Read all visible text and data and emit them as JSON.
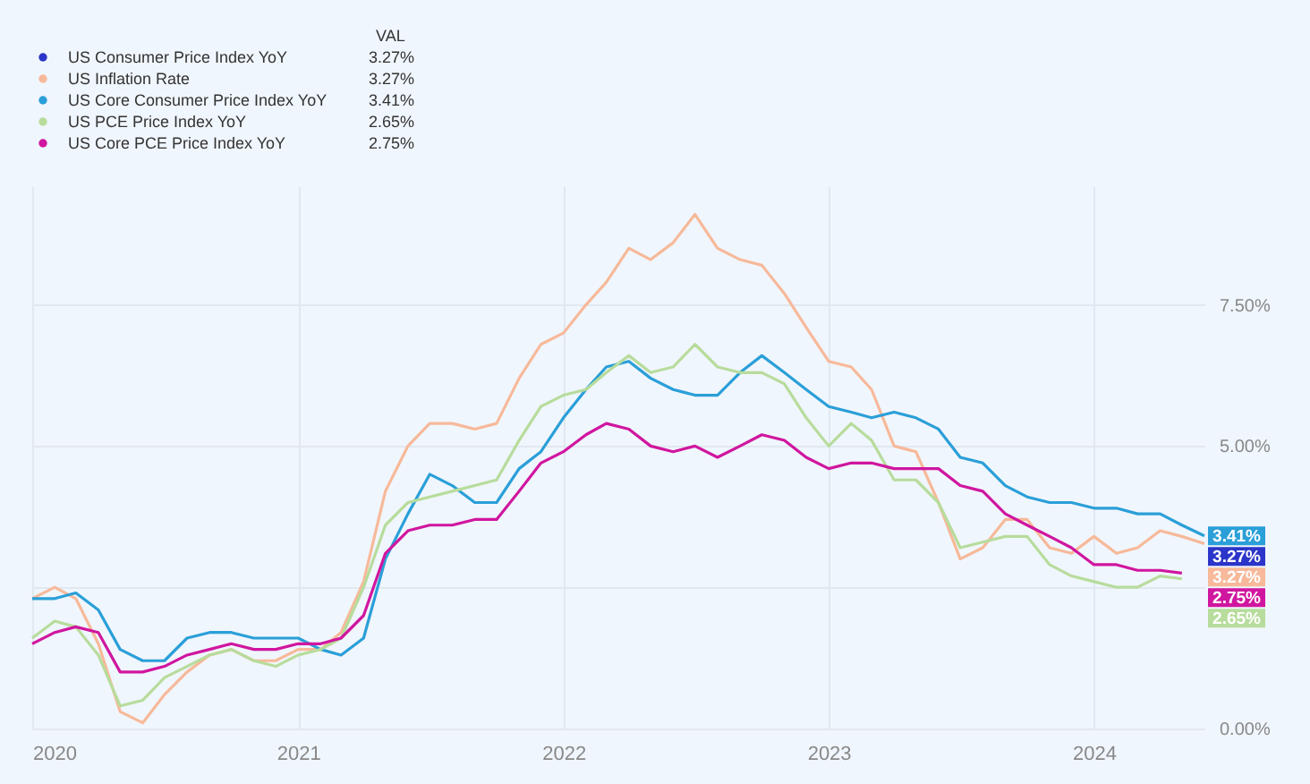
{
  "chart_data": {
    "type": "line",
    "legend_title": "VAL",
    "x": [
      "2020-01",
      "2020-02",
      "2020-03",
      "2020-04",
      "2020-05",
      "2020-06",
      "2020-07",
      "2020-08",
      "2020-09",
      "2020-10",
      "2020-11",
      "2020-12",
      "2021-01",
      "2021-02",
      "2021-03",
      "2021-04",
      "2021-05",
      "2021-06",
      "2021-07",
      "2021-08",
      "2021-09",
      "2021-10",
      "2021-11",
      "2021-12",
      "2022-01",
      "2022-02",
      "2022-03",
      "2022-04",
      "2022-05",
      "2022-06",
      "2022-07",
      "2022-08",
      "2022-09",
      "2022-10",
      "2022-11",
      "2022-12",
      "2023-01",
      "2023-02",
      "2023-03",
      "2023-04",
      "2023-05",
      "2023-06",
      "2023-07",
      "2023-08",
      "2023-09",
      "2023-10",
      "2023-11",
      "2023-12",
      "2024-01",
      "2024-02",
      "2024-03",
      "2024-04",
      "2024-05",
      "2024-06"
    ],
    "series": [
      {
        "name": "US Consumer Price Index YoY",
        "color": "#2b35c9",
        "values": [
          null,
          null,
          null,
          null,
          null,
          null,
          null,
          null,
          null,
          null,
          null,
          null,
          null,
          null,
          null,
          null,
          null,
          null,
          null,
          null,
          null,
          null,
          null,
          null,
          null,
          null,
          null,
          null,
          null,
          null,
          null,
          null,
          null,
          null,
          null,
          null,
          null,
          null,
          null,
          null,
          null,
          null,
          null,
          null,
          null,
          null,
          null,
          null,
          null,
          null,
          null,
          null,
          null,
          null
        ],
        "value_labels": [
          null,
          null,
          null,
          null,
          null,
          null,
          null,
          null,
          null,
          null,
          null,
          null,
          null,
          null,
          null,
          null,
          null,
          null,
          null,
          null,
          null,
          null,
          null,
          null,
          null,
          null,
          null,
          null,
          null,
          null,
          null,
          null,
          null,
          null,
          null,
          null,
          null,
          null,
          null,
          null,
          null,
          null,
          null,
          null,
          null,
          null,
          null,
          null,
          null,
          null,
          null,
          null,
          null,
          "3.27%"
        ]
      },
      {
        "name": "US Inflation Rate",
        "color": "#f7b99a",
        "values": [
          2.3,
          2.5,
          2.3,
          1.5,
          0.3,
          0.1,
          0.6,
          1.0,
          1.3,
          1.4,
          1.2,
          1.2,
          1.4,
          1.4,
          1.7,
          2.6,
          4.2,
          5.0,
          5.4,
          5.4,
          5.3,
          5.4,
          6.2,
          6.8,
          7.0,
          7.5,
          7.9,
          8.5,
          8.3,
          8.6,
          9.1,
          8.5,
          8.3,
          8.2,
          7.7,
          7.1,
          6.5,
          6.4,
          6.0,
          5.0,
          4.9,
          4.0,
          3.0,
          3.2,
          3.7,
          3.7,
          3.2,
          3.1,
          3.4,
          3.1,
          3.2,
          3.5,
          3.4,
          3.27
        ],
        "value_labels": [
          null,
          null,
          null,
          null,
          null,
          null,
          null,
          null,
          null,
          null,
          null,
          null,
          null,
          null,
          null,
          null,
          null,
          null,
          null,
          null,
          null,
          null,
          null,
          null,
          null,
          null,
          null,
          null,
          null,
          null,
          null,
          null,
          null,
          null,
          null,
          null,
          null,
          null,
          null,
          null,
          null,
          null,
          null,
          null,
          null,
          null,
          null,
          null,
          null,
          null,
          null,
          null,
          null,
          "3.27%"
        ]
      },
      {
        "name": "US Core Consumer Price Index YoY",
        "color": "#2a9fd8",
        "values": [
          2.3,
          2.3,
          2.4,
          2.1,
          1.4,
          1.2,
          1.2,
          1.6,
          1.7,
          1.7,
          1.6,
          1.6,
          1.6,
          1.4,
          1.3,
          1.6,
          3.0,
          3.8,
          4.5,
          4.3,
          4.0,
          4.0,
          4.6,
          4.9,
          5.5,
          6.0,
          6.4,
          6.5,
          6.2,
          6.0,
          5.9,
          5.9,
          6.3,
          6.6,
          6.3,
          6.0,
          5.7,
          5.6,
          5.5,
          5.6,
          5.5,
          5.3,
          4.8,
          4.7,
          4.3,
          4.1,
          4.0,
          4.0,
          3.9,
          3.9,
          3.8,
          3.8,
          3.6,
          3.41
        ],
        "value_labels": [
          null,
          null,
          null,
          null,
          null,
          null,
          null,
          null,
          null,
          null,
          null,
          null,
          null,
          null,
          null,
          null,
          null,
          null,
          null,
          null,
          null,
          null,
          null,
          null,
          null,
          null,
          null,
          null,
          null,
          null,
          null,
          null,
          null,
          null,
          null,
          null,
          null,
          null,
          null,
          null,
          null,
          null,
          null,
          null,
          null,
          null,
          null,
          null,
          null,
          null,
          null,
          null,
          null,
          "3.41%"
        ]
      },
      {
        "name": "US PCE Price Index YoY",
        "color": "#b7dc9c",
        "values": [
          1.6,
          1.9,
          1.8,
          1.3,
          0.4,
          0.5,
          0.9,
          1.1,
          1.3,
          1.4,
          1.2,
          1.1,
          1.3,
          1.4,
          1.6,
          2.5,
          3.6,
          4.0,
          4.1,
          4.2,
          4.3,
          4.4,
          5.1,
          5.7,
          5.9,
          6.0,
          6.3,
          6.6,
          6.3,
          6.4,
          6.8,
          6.4,
          6.3,
          6.3,
          6.1,
          5.5,
          5.0,
          5.4,
          5.1,
          4.4,
          4.4,
          4.0,
          3.2,
          3.3,
          3.4,
          3.4,
          2.9,
          2.7,
          2.6,
          2.5,
          2.5,
          2.7,
          2.65,
          null
        ],
        "value_labels": [
          null,
          null,
          null,
          null,
          null,
          null,
          null,
          null,
          null,
          null,
          null,
          null,
          null,
          null,
          null,
          null,
          null,
          null,
          null,
          null,
          null,
          null,
          null,
          null,
          null,
          null,
          null,
          null,
          null,
          null,
          null,
          null,
          null,
          null,
          null,
          null,
          null,
          null,
          null,
          null,
          null,
          null,
          null,
          null,
          null,
          null,
          null,
          null,
          null,
          null,
          null,
          null,
          "2.65%",
          null
        ]
      },
      {
        "name": "US Core PCE Price Index YoY",
        "color": "#d0169f",
        "values": [
          1.5,
          1.7,
          1.8,
          1.7,
          1.0,
          1.0,
          1.1,
          1.3,
          1.4,
          1.5,
          1.4,
          1.4,
          1.5,
          1.5,
          1.6,
          2.0,
          3.1,
          3.5,
          3.6,
          3.6,
          3.7,
          3.7,
          4.2,
          4.7,
          4.9,
          5.2,
          5.4,
          5.3,
          5.0,
          4.9,
          5.0,
          4.8,
          5.0,
          5.2,
          5.1,
          4.8,
          4.6,
          4.7,
          4.7,
          4.6,
          4.6,
          4.6,
          4.3,
          4.2,
          3.8,
          3.6,
          3.4,
          3.2,
          2.9,
          2.9,
          2.8,
          2.8,
          2.75,
          null
        ],
        "value_labels": [
          null,
          null,
          null,
          null,
          null,
          null,
          null,
          null,
          null,
          null,
          null,
          null,
          null,
          null,
          null,
          null,
          null,
          null,
          null,
          null,
          null,
          null,
          null,
          null,
          null,
          null,
          null,
          null,
          null,
          null,
          null,
          null,
          null,
          null,
          null,
          null,
          null,
          null,
          null,
          null,
          null,
          null,
          null,
          null,
          null,
          null,
          null,
          null,
          null,
          null,
          null,
          null,
          "2.75%",
          null
        ]
      }
    ],
    "xlim": [
      "2020-01",
      "2024-06"
    ],
    "xticks": [
      {
        "value": "2020",
        "label": "2020"
      },
      {
        "value": "2021",
        "label": "2021"
      },
      {
        "value": "2022",
        "label": "2022"
      },
      {
        "value": "2023",
        "label": "2023"
      },
      {
        "value": "2024",
        "label": "2024"
      }
    ],
    "ylim": [
      0,
      9.6
    ],
    "yticks": [
      {
        "value": 0,
        "label": "0.00%"
      },
      {
        "value": 2.5,
        "label": null
      },
      {
        "value": 5,
        "label": "5.00%"
      },
      {
        "value": 7.5,
        "label": "7.50%"
      }
    ],
    "grid": true,
    "legend": "top left",
    "marker": "none",
    "line_style": "solid"
  }
}
